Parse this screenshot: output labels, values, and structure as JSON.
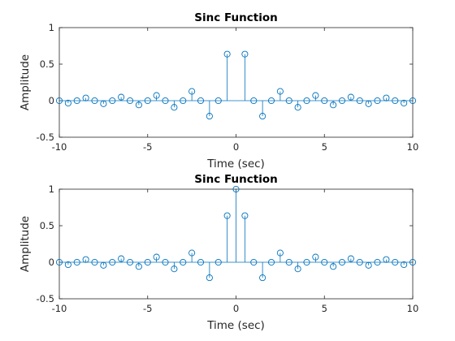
{
  "chart_data": [
    {
      "type": "stem",
      "title": "Sinc Function",
      "xlabel": "Time (sec)",
      "ylabel": "Amplitude",
      "xlim": [
        -10,
        10
      ],
      "ylim": [
        -0.5,
        1
      ],
      "xticks": [
        "-10",
        "-5",
        "0",
        "5",
        "10"
      ],
      "xtick_values": [
        -10,
        -5,
        0,
        5,
        10
      ],
      "yticks": [
        "-0.5",
        "0",
        "0.5",
        "1"
      ],
      "ytick_values": [
        -0.5,
        0,
        0.5,
        1
      ],
      "color": "#0072bd",
      "x": [
        -10,
        -9.5,
        -9,
        -8.5,
        -8,
        -7.5,
        -7,
        -6.5,
        -6,
        -5.5,
        -5,
        -4.5,
        -4,
        -3.5,
        -3,
        -2.5,
        -2,
        -1.5,
        -1,
        -0.5,
        0.5,
        1,
        1.5,
        2,
        2.5,
        3,
        3.5,
        4,
        4.5,
        5,
        5.5,
        6,
        6.5,
        7,
        7.5,
        8,
        8.5,
        9,
        9.5,
        10
      ],
      "y": [
        0,
        -0.033,
        0,
        0.037,
        0,
        -0.042,
        0,
        0.049,
        0,
        -0.058,
        0,
        0.071,
        0,
        -0.091,
        0,
        0.127,
        0,
        -0.212,
        0,
        0.637,
        0.637,
        0,
        -0.212,
        0,
        0.127,
        0,
        -0.091,
        0,
        0.071,
        0,
        -0.058,
        0,
        0.049,
        0,
        -0.042,
        0,
        0.037,
        0,
        -0.033,
        0
      ]
    },
    {
      "type": "stem",
      "title": "Sinc Function",
      "xlabel": "Time (sec)",
      "ylabel": "Amplitude",
      "xlim": [
        -10,
        10
      ],
      "ylim": [
        -0.5,
        1
      ],
      "xticks": [
        "-10",
        "-5",
        "0",
        "5",
        "10"
      ],
      "xtick_values": [
        -10,
        -5,
        0,
        5,
        10
      ],
      "yticks": [
        "-0.5",
        "0",
        "0.5",
        "1"
      ],
      "ytick_values": [
        -0.5,
        0,
        0.5,
        1
      ],
      "color": "#0072bd",
      "x": [
        -10,
        -9.5,
        -9,
        -8.5,
        -8,
        -7.5,
        -7,
        -6.5,
        -6,
        -5.5,
        -5,
        -4.5,
        -4,
        -3.5,
        -3,
        -2.5,
        -2,
        -1.5,
        -1,
        -0.5,
        0,
        0.5,
        1,
        1.5,
        2,
        2.5,
        3,
        3.5,
        4,
        4.5,
        5,
        5.5,
        6,
        6.5,
        7,
        7.5,
        8,
        8.5,
        9,
        9.5,
        10
      ],
      "y": [
        0,
        -0.033,
        0,
        0.037,
        0,
        -0.042,
        0,
        0.049,
        0,
        -0.058,
        0,
        0.071,
        0,
        -0.091,
        0,
        0.127,
        0,
        -0.212,
        0,
        0.637,
        1,
        0.637,
        0,
        -0.212,
        0,
        0.127,
        0,
        -0.091,
        0,
        0.071,
        0,
        -0.058,
        0,
        0.049,
        0,
        -0.042,
        0,
        0.037,
        0,
        -0.033,
        0
      ]
    }
  ]
}
